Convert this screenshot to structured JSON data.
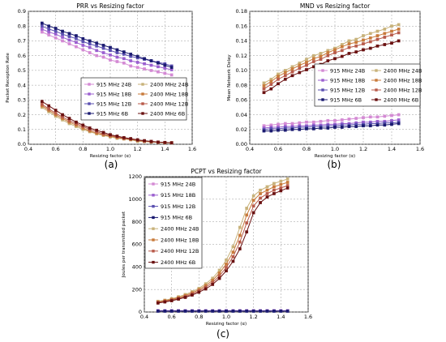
{
  "panel_labels": [
    "(a)",
    "(b)",
    "(c)"
  ],
  "chart_data": [
    {
      "type": "line",
      "title": "PRR vs Resizing factor",
      "xlabel": "Resizing factor (α)",
      "ylabel": "Packet Reception Rate",
      "xlim": [
        0.4,
        1.6
      ],
      "ylim": [
        0.0,
        0.9
      ],
      "xticks": [
        "0.4",
        "0.6",
        "0.8",
        "1.0",
        "1.2",
        "1.4",
        "1.6"
      ],
      "yticks": [
        "0.0",
        "0.1",
        "0.2",
        "0.3",
        "0.4",
        "0.5",
        "0.6",
        "0.7",
        "0.8",
        "0.9"
      ],
      "grid": true,
      "legend_position": "center-right",
      "legend_columns": 2,
      "x": [
        0.5,
        0.55,
        0.6,
        0.65,
        0.7,
        0.75,
        0.8,
        0.85,
        0.9,
        0.95,
        1.0,
        1.05,
        1.1,
        1.15,
        1.2,
        1.25,
        1.3,
        1.35,
        1.4,
        1.45
      ],
      "series": [
        {
          "name": "915 MHz 24B",
          "color": "#d48ad4",
          "marker": "square",
          "values": [
            0.76,
            0.74,
            0.72,
            0.7,
            0.68,
            0.66,
            0.64,
            0.62,
            0.6,
            0.59,
            0.57,
            0.56,
            0.55,
            0.53,
            0.52,
            0.51,
            0.5,
            0.49,
            0.48,
            0.47
          ]
        },
        {
          "name": "915 MHz 18B",
          "color": "#9b5fd0",
          "marker": "square",
          "values": [
            0.78,
            0.76,
            0.745,
            0.725,
            0.705,
            0.69,
            0.67,
            0.655,
            0.635,
            0.62,
            0.605,
            0.59,
            0.58,
            0.565,
            0.555,
            0.545,
            0.535,
            0.525,
            0.515,
            0.505
          ]
        },
        {
          "name": "915 MHz 12B",
          "color": "#5a4fb0",
          "marker": "square",
          "values": [
            0.8,
            0.78,
            0.765,
            0.745,
            0.73,
            0.715,
            0.695,
            0.68,
            0.665,
            0.65,
            0.635,
            0.62,
            0.61,
            0.595,
            0.585,
            0.575,
            0.565,
            0.555,
            0.545,
            0.53
          ]
        },
        {
          "name": "915 MHz  6B",
          "color": "#1a1a70",
          "marker": "square",
          "values": [
            0.82,
            0.8,
            0.785,
            0.765,
            0.75,
            0.735,
            0.715,
            0.7,
            0.685,
            0.67,
            0.655,
            0.64,
            0.625,
            0.61,
            0.595,
            0.58,
            0.565,
            0.55,
            0.535,
            0.52
          ]
        },
        {
          "name": "2400 MHz 24B",
          "color": "#c8b27a",
          "marker": "square",
          "values": [
            0.25,
            0.22,
            0.19,
            0.165,
            0.14,
            0.12,
            0.1,
            0.085,
            0.07,
            0.06,
            0.05,
            0.04,
            0.035,
            0.03,
            0.02,
            0.018,
            0.015,
            0.012,
            0.01,
            0.01
          ]
        },
        {
          "name": "2400 MHz 18B",
          "color": "#c87a3a",
          "marker": "square",
          "values": [
            0.26,
            0.23,
            0.2,
            0.175,
            0.15,
            0.13,
            0.11,
            0.09,
            0.075,
            0.065,
            0.055,
            0.045,
            0.038,
            0.032,
            0.025,
            0.02,
            0.016,
            0.013,
            0.011,
            0.01
          ]
        },
        {
          "name": "2400 MHz 12B",
          "color": "#b85a4a",
          "marker": "square",
          "values": [
            0.27,
            0.24,
            0.21,
            0.185,
            0.16,
            0.14,
            0.12,
            0.1,
            0.085,
            0.07,
            0.06,
            0.05,
            0.04,
            0.035,
            0.028,
            0.022,
            0.018,
            0.014,
            0.012,
            0.01
          ]
        },
        {
          "name": "2400 MHz  6B",
          "color": "#6a1010",
          "marker": "square",
          "values": [
            0.29,
            0.26,
            0.23,
            0.2,
            0.175,
            0.15,
            0.13,
            0.11,
            0.095,
            0.08,
            0.065,
            0.055,
            0.045,
            0.038,
            0.03,
            0.024,
            0.019,
            0.015,
            0.012,
            0.01
          ]
        }
      ]
    },
    {
      "type": "line",
      "title": "MND vs Resizing factor",
      "xlabel": "Resizing factor (α)",
      "ylabel": "Mean Network Delay",
      "xlim": [
        0.4,
        1.6
      ],
      "ylim": [
        0.0,
        0.18
      ],
      "xticks": [
        "0.4",
        "0.6",
        "0.8",
        "1.0",
        "1.2",
        "1.4",
        "1.6"
      ],
      "yticks": [
        "0.00",
        "0.02",
        "0.04",
        "0.06",
        "0.08",
        "0.10",
        "0.12",
        "0.14",
        "0.16",
        "0.18"
      ],
      "grid": true,
      "legend_position": "center-right",
      "legend_columns": 2,
      "x": [
        0.5,
        0.55,
        0.6,
        0.65,
        0.7,
        0.75,
        0.8,
        0.85,
        0.9,
        0.95,
        1.0,
        1.05,
        1.1,
        1.15,
        1.2,
        1.25,
        1.3,
        1.35,
        1.4,
        1.45
      ],
      "series": [
        {
          "name": "915 MHz 24B",
          "color": "#d48ad4",
          "marker": "square",
          "values": [
            0.025,
            0.026,
            0.027,
            0.028,
            0.028,
            0.029,
            0.03,
            0.03,
            0.031,
            0.032,
            0.032,
            0.033,
            0.034,
            0.035,
            0.036,
            0.037,
            0.037,
            0.038,
            0.039,
            0.04
          ]
        },
        {
          "name": "915 MHz 18B",
          "color": "#9b5fd0",
          "marker": "square",
          "values": [
            0.022,
            0.023,
            0.023,
            0.024,
            0.024,
            0.025,
            0.025,
            0.026,
            0.026,
            0.027,
            0.027,
            0.028,
            0.028,
            0.029,
            0.03,
            0.03,
            0.031,
            0.031,
            0.032,
            0.033
          ]
        },
        {
          "name": "915 MHz 12B",
          "color": "#5a4fb0",
          "marker": "square",
          "values": [
            0.02,
            0.021,
            0.021,
            0.022,
            0.022,
            0.023,
            0.023,
            0.024,
            0.024,
            0.025,
            0.025,
            0.026,
            0.026,
            0.027,
            0.027,
            0.028,
            0.028,
            0.029,
            0.029,
            0.03
          ]
        },
        {
          "name": "915 MHz  6B",
          "color": "#1a1a70",
          "marker": "square",
          "values": [
            0.018,
            0.018,
            0.019,
            0.019,
            0.02,
            0.02,
            0.021,
            0.021,
            0.022,
            0.022,
            0.023,
            0.023,
            0.024,
            0.024,
            0.025,
            0.025,
            0.026,
            0.026,
            0.027,
            0.028
          ]
        },
        {
          "name": "2400 MHz 24B",
          "color": "#c8b27a",
          "marker": "square",
          "values": [
            0.083,
            0.088,
            0.095,
            0.1,
            0.105,
            0.11,
            0.115,
            0.12,
            0.123,
            0.127,
            0.13,
            0.135,
            0.14,
            0.142,
            0.147,
            0.15,
            0.153,
            0.156,
            0.16,
            0.162
          ]
        },
        {
          "name": "2400 MHz 18B",
          "color": "#c87a3a",
          "marker": "square",
          "values": [
            0.079,
            0.085,
            0.092,
            0.097,
            0.102,
            0.107,
            0.111,
            0.116,
            0.119,
            0.124,
            0.128,
            0.132,
            0.136,
            0.138,
            0.141,
            0.144,
            0.147,
            0.15,
            0.153,
            0.156
          ]
        },
        {
          "name": "2400 MHz 12B",
          "color": "#b85a4a",
          "marker": "square",
          "values": [
            0.075,
            0.081,
            0.088,
            0.093,
            0.098,
            0.103,
            0.107,
            0.112,
            0.115,
            0.12,
            0.124,
            0.127,
            0.131,
            0.133,
            0.136,
            0.139,
            0.142,
            0.145,
            0.148,
            0.151
          ]
        },
        {
          "name": "2400 MHz  6B",
          "color": "#6a1010",
          "marker": "square",
          "values": [
            0.07,
            0.075,
            0.082,
            0.088,
            0.093,
            0.097,
            0.101,
            0.105,
            0.108,
            0.113,
            0.116,
            0.119,
            0.123,
            0.125,
            0.128,
            0.13,
            0.133,
            0.135,
            0.137,
            0.14
          ]
        }
      ]
    },
    {
      "type": "line",
      "title": "PCPT vs Resizing factor",
      "xlabel": "Resizing factor (α)",
      "ylabel": "Joules per transmitted packet",
      "xlim": [
        0.4,
        1.6
      ],
      "ylim": [
        0,
        1200
      ],
      "xticks": [
        "0.4",
        "0.6",
        "0.8",
        "1.0",
        "1.2",
        "1.4",
        "1.6"
      ],
      "yticks": [
        "0",
        "200",
        "400",
        "600",
        "800",
        "1000",
        "1200"
      ],
      "grid": true,
      "legend_position": "top-left",
      "legend_columns": 1,
      "x": [
        0.5,
        0.55,
        0.6,
        0.65,
        0.7,
        0.75,
        0.8,
        0.85,
        0.9,
        0.95,
        1.0,
        1.05,
        1.1,
        1.15,
        1.2,
        1.25,
        1.3,
        1.35,
        1.4,
        1.45
      ],
      "series": [
        {
          "name": "915 MHz 24B",
          "color": "#d48ad4",
          "marker": "square",
          "values": [
            12,
            12,
            12,
            12,
            12,
            12,
            12,
            12,
            12,
            12,
            12,
            12,
            12,
            12,
            12,
            12,
            12,
            12,
            12,
            12
          ]
        },
        {
          "name": "915 MHz 18B",
          "color": "#9b5fd0",
          "marker": "square",
          "values": [
            10,
            10,
            10,
            10,
            10,
            10,
            10,
            10,
            10,
            10,
            10,
            10,
            10,
            10,
            10,
            10,
            10,
            10,
            10,
            10
          ]
        },
        {
          "name": "915 MHz 12B",
          "color": "#5a4fb0",
          "marker": "square",
          "values": [
            9,
            9,
            9,
            9,
            9,
            9,
            9,
            9,
            9,
            9,
            9,
            9,
            9,
            9,
            9,
            9,
            9,
            9,
            9,
            9
          ]
        },
        {
          "name": "915 MHz  6B",
          "color": "#1a1a70",
          "marker": "square",
          "values": [
            8,
            8,
            8,
            8,
            8,
            8,
            8,
            8,
            8,
            8,
            8,
            8,
            8,
            8,
            8,
            8,
            8,
            8,
            8,
            8
          ]
        },
        {
          "name": "2400 MHz 24B",
          "color": "#c8b27a",
          "marker": "square",
          "values": [
            95,
            105,
            118,
            135,
            155,
            180,
            210,
            250,
            300,
            370,
            460,
            580,
            750,
            920,
            1030,
            1080,
            1110,
            1140,
            1160,
            1180
          ]
        },
        {
          "name": "2400 MHz 18B",
          "color": "#c87a3a",
          "marker": "square",
          "values": [
            90,
            100,
            112,
            128,
            146,
            170,
            198,
            235,
            280,
            345,
            425,
            530,
            680,
            860,
            990,
            1050,
            1080,
            1110,
            1130,
            1150
          ]
        },
        {
          "name": "2400 MHz 12B",
          "color": "#b85a4a",
          "marker": "square",
          "values": [
            85,
            95,
            106,
            121,
            138,
            160,
            186,
            220,
            262,
            320,
            395,
            490,
            620,
            790,
            940,
            1010,
            1050,
            1080,
            1100,
            1120
          ]
        },
        {
          "name": "2400 MHz  6B",
          "color": "#6a1010",
          "marker": "square",
          "values": [
            80,
            89,
            100,
            114,
            130,
            150,
            175,
            205,
            245,
            298,
            365,
            450,
            560,
            710,
            880,
            970,
            1020,
            1050,
            1075,
            1100
          ]
        }
      ]
    }
  ]
}
